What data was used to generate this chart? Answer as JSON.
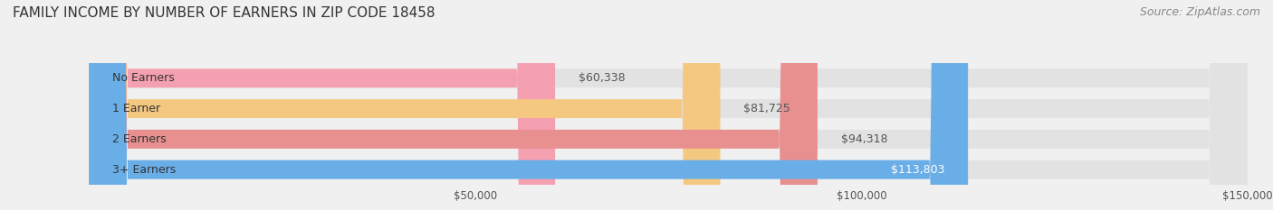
{
  "title": "FAMILY INCOME BY NUMBER OF EARNERS IN ZIP CODE 18458",
  "source": "Source: ZipAtlas.com",
  "categories": [
    "No Earners",
    "1 Earner",
    "2 Earners",
    "3+ Earners"
  ],
  "values": [
    60338,
    81725,
    94318,
    113803
  ],
  "bar_colors": [
    "#f4a0b0",
    "#f5c882",
    "#e89090",
    "#6aaee8"
  ],
  "label_colors": [
    "#555555",
    "#555555",
    "#555555",
    "#ffffff"
  ],
  "xlim": [
    0,
    150000
  ],
  "xticks": [
    50000,
    100000,
    150000
  ],
  "xtick_labels": [
    "$50,000",
    "$100,000",
    "$150,000"
  ],
  "background_color": "#f0f0f0",
  "bar_bg_color": "#e2e2e2",
  "title_fontsize": 11,
  "source_fontsize": 9,
  "bar_label_fontsize": 9,
  "category_fontsize": 9
}
